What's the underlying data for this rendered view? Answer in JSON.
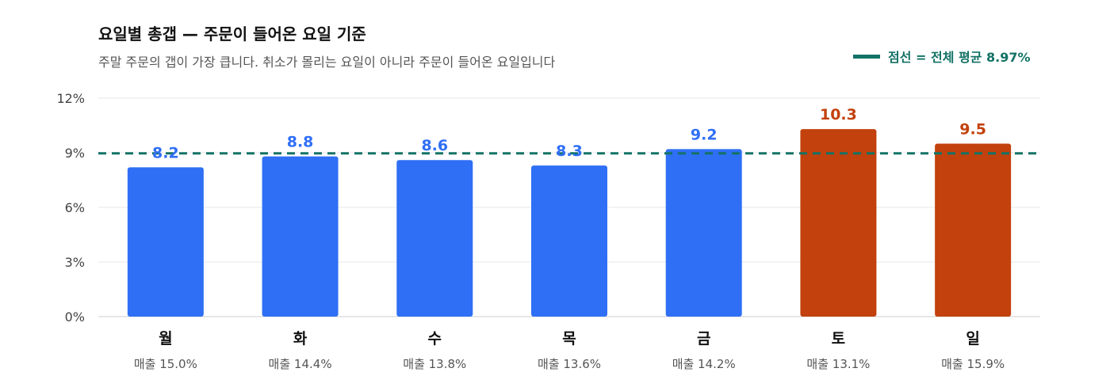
{
  "chart_data": {
    "type": "bar",
    "title": "요일별 총갭 — 주문이 들어온 요일 기준",
    "subtitle": "주말 주문의 갭이 가장 큽니다. 취소가 몰리는 요일이 아니라 주문이 들어온 요일입니다",
    "categories": [
      "월",
      "화",
      "수",
      "목",
      "금",
      "토",
      "일"
    ],
    "values": [
      8.2,
      8.8,
      8.6,
      8.3,
      9.2,
      10.3,
      9.5
    ],
    "value_labels": [
      "8.2",
      "8.8",
      "8.6",
      "8.3",
      "9.2",
      "10.3",
      "9.5"
    ],
    "sales_labels": [
      "매출 15.0%",
      "매출 14.4%",
      "매출 13.8%",
      "매출 13.6%",
      "매출 14.2%",
      "매출 13.1%",
      "매출 15.9%"
    ],
    "highlight": [
      false,
      false,
      false,
      false,
      false,
      true,
      true
    ],
    "yticks": [
      0,
      3,
      6,
      9,
      12
    ],
    "ytick_labels": [
      "0%",
      "3%",
      "6%",
      "9%",
      "12%"
    ],
    "ylim": [
      0,
      12
    ],
    "average": 8.97,
    "legend_label": "점선 = 전체 평균 8.97%",
    "legend_placement": "top-right",
    "grid": true,
    "colors": {
      "bar": "#2f6ff5",
      "bar_highlight": "#c2410c",
      "average_line": "#137266",
      "grid": "#e5e7eb",
      "axis": "#cccccc"
    }
  }
}
